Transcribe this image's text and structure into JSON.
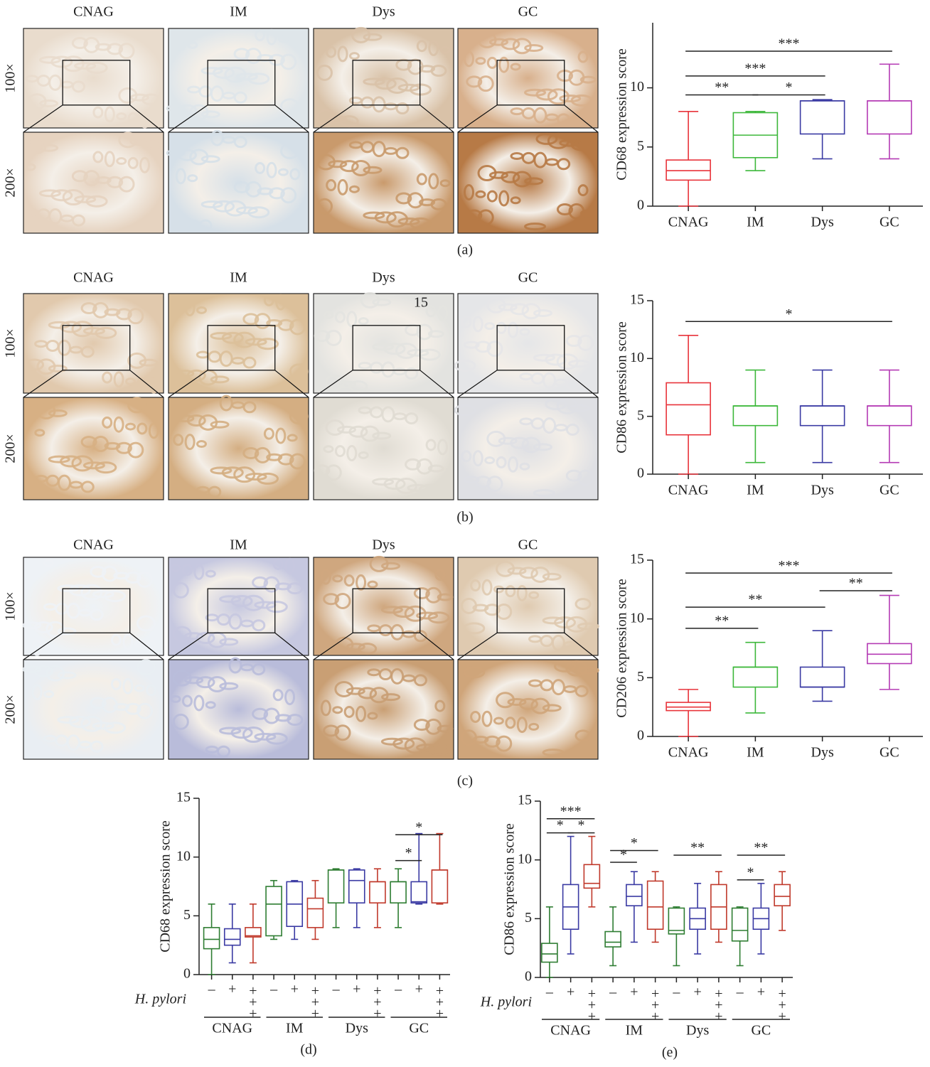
{
  "image_panels": [
    {
      "label": "(a)",
      "columns": [
        "CNAG",
        "IM",
        "Dys",
        "GC"
      ],
      "rows": [
        "100×",
        "200×"
      ]
    },
    {
      "label": "(b)",
      "columns": [
        "CNAG",
        "IM",
        "Dys",
        "GC"
      ],
      "rows": [
        "100×",
        "200×"
      ],
      "note": "15"
    },
    {
      "label": "(c)",
      "columns": [
        "CNAG",
        "IM",
        "Dys",
        "GC"
      ],
      "rows": [
        "100×",
        "200×"
      ]
    }
  ],
  "chart_data": [
    {
      "type": "box",
      "ylabel": "CD68 expression score",
      "categories": [
        "CNAG",
        "IM",
        "Dys",
        "GC"
      ],
      "ylim": [
        0,
        15.5
      ],
      "yticks": [
        0,
        5,
        10
      ],
      "boxes": [
        {
          "color": "#e8333a",
          "min": 0,
          "q1": 2.2,
          "median": 3,
          "q3": 3.9,
          "max": 8
        },
        {
          "color": "#3db83b",
          "min": 3,
          "q1": 4.1,
          "median": 6,
          "q3": 7.9,
          "max": 8
        },
        {
          "color": "#3a3aa3",
          "min": 4,
          "q1": 6.1,
          "median": 8.9,
          "q3": 8.9,
          "max": 9
        },
        {
          "color": "#b43ab4",
          "min": 4,
          "q1": 6.1,
          "median": 8.9,
          "q3": 8.9,
          "max": 12
        }
      ],
      "annotations": [
        {
          "from": 0,
          "to": 3,
          "y": 13.1,
          "label": "***"
        },
        {
          "from": 0,
          "to": 2,
          "y": 11.0,
          "label": "***"
        },
        {
          "from": 0,
          "to": 1,
          "y": 9.4,
          "label": "**"
        },
        {
          "from": 1,
          "to": 2,
          "y": 9.4,
          "label": "*"
        }
      ]
    },
    {
      "type": "box",
      "ylabel": "CD86 expression score",
      "categories": [
        "CNAG",
        "IM",
        "Dys",
        "GC"
      ],
      "ylim": [
        0,
        15
      ],
      "yticks": [
        0,
        5,
        10,
        15
      ],
      "boxes": [
        {
          "color": "#e8333a",
          "min": 0,
          "q1": 3.4,
          "median": 6,
          "q3": 7.9,
          "max": 12
        },
        {
          "color": "#3db83b",
          "min": 1,
          "q1": 4.2,
          "median": 5.9,
          "q3": 5.9,
          "max": 9
        },
        {
          "color": "#3a3aa3",
          "min": 1,
          "q1": 4.2,
          "median": 5.9,
          "q3": 5.9,
          "max": 9
        },
        {
          "color": "#b43ab4",
          "min": 1,
          "q1": 4.2,
          "median": 5.9,
          "q3": 5.9,
          "max": 9
        }
      ],
      "annotations": [
        {
          "from": 0,
          "to": 3,
          "y": 13.2,
          "label": "*"
        }
      ]
    },
    {
      "type": "box",
      "ylabel": "CD206 expression score",
      "categories": [
        "CNAG",
        "IM",
        "Dys",
        "GC"
      ],
      "ylim": [
        0,
        15
      ],
      "yticks": [
        0,
        5,
        10,
        15
      ],
      "boxes": [
        {
          "color": "#e8333a",
          "min": 0,
          "q1": 2.2,
          "median": 2.5,
          "q3": 2.9,
          "max": 4
        },
        {
          "color": "#3db83b",
          "min": 2,
          "q1": 4.2,
          "median": 5.9,
          "q3": 5.9,
          "max": 8
        },
        {
          "color": "#3a3aa3",
          "min": 3,
          "q1": 4.2,
          "median": 4.2,
          "q3": 5.9,
          "max": 9
        },
        {
          "color": "#b43ab4",
          "min": 4,
          "q1": 6.2,
          "median": 7,
          "q3": 7.9,
          "max": 12
        }
      ],
      "annotations": [
        {
          "from": 0,
          "to": 3,
          "y": 13.9,
          "label": "***"
        },
        {
          "from": 2,
          "to": 3,
          "y": 12.4,
          "label": "**"
        },
        {
          "from": 0,
          "to": 2,
          "y": 11.0,
          "label": "**"
        },
        {
          "from": 0,
          "to": 1,
          "y": 9.2,
          "label": "**"
        }
      ]
    },
    {
      "type": "grouped_box",
      "label": "(d)",
      "ylabel": "CD68 expression score",
      "groups": [
        "CNAG",
        "IM",
        "Dys",
        "GC"
      ],
      "factor": "H. pylori",
      "levels": [
        "–",
        "+",
        "+++"
      ],
      "level_colors": [
        "#2e7d32",
        "#3a3aa3",
        "#c0392b"
      ],
      "ylim": [
        0,
        15
      ],
      "yticks": [
        0,
        5,
        10,
        15
      ],
      "boxes": [
        {
          "min": 0,
          "q1": 2.2,
          "median": 3,
          "q3": 4,
          "max": 6
        },
        {
          "min": 1,
          "q1": 2.5,
          "median": 3,
          "q3": 3.9,
          "max": 6
        },
        {
          "min": 1,
          "q1": 3.2,
          "median": 3.3,
          "q3": 4,
          "max": 6
        },
        {
          "min": 3,
          "q1": 3.3,
          "median": 6,
          "q3": 7.5,
          "max": 8
        },
        {
          "min": 3,
          "q1": 4.1,
          "median": 6,
          "q3": 7.9,
          "max": 8
        },
        {
          "min": 3,
          "q1": 4,
          "median": 5.6,
          "q3": 6.5,
          "max": 8
        },
        {
          "min": 4,
          "q1": 6.1,
          "median": 8.9,
          "q3": 8.9,
          "max": 9
        },
        {
          "min": 4,
          "q1": 6.1,
          "median": 8,
          "q3": 8.9,
          "max": 9
        },
        {
          "min": 4,
          "q1": 6.1,
          "median": 7.9,
          "q3": 7.9,
          "max": 9
        },
        {
          "min": 4,
          "q1": 6.1,
          "median": 7.9,
          "q3": 7.9,
          "max": 9
        },
        {
          "min": 6,
          "q1": 6.1,
          "median": 6.2,
          "q3": 7.9,
          "max": 12
        },
        {
          "min": 6,
          "q1": 6.1,
          "median": 8.9,
          "q3": 8.9,
          "max": 12
        }
      ],
      "annotations": [
        {
          "from": 9,
          "to": 10,
          "y": 9.7,
          "label": "*"
        },
        {
          "from": 9,
          "to": 11,
          "y": 11.9,
          "label": "*"
        }
      ]
    },
    {
      "type": "grouped_box",
      "label": "(e)",
      "ylabel": "CD86 expression score",
      "groups": [
        "CNAG",
        "IM",
        "Dys",
        "GC"
      ],
      "factor": "H. pylori",
      "levels": [
        "–",
        "+",
        "+++"
      ],
      "level_colors": [
        "#2e7d32",
        "#3a3aa3",
        "#c0392b"
      ],
      "ylim": [
        0,
        15
      ],
      "yticks": [
        0,
        5,
        10,
        15
      ],
      "boxes": [
        {
          "min": 0,
          "q1": 1.3,
          "median": 2,
          "q3": 2.9,
          "max": 6
        },
        {
          "min": 2,
          "q1": 4.1,
          "median": 6,
          "q3": 7.9,
          "max": 12
        },
        {
          "min": 6,
          "q1": 7.6,
          "median": 8,
          "q3": 9.6,
          "max": 12
        },
        {
          "min": 1,
          "q1": 2.6,
          "median": 3,
          "q3": 3.9,
          "max": 6
        },
        {
          "min": 3,
          "q1": 6.1,
          "median": 6.9,
          "q3": 7.9,
          "max": 9
        },
        {
          "min": 3,
          "q1": 4.1,
          "median": 6,
          "q3": 8.2,
          "max": 9
        },
        {
          "min": 1,
          "q1": 3.7,
          "median": 4,
          "q3": 5.9,
          "max": 6
        },
        {
          "min": 2,
          "q1": 4.1,
          "median": 5,
          "q3": 5.9,
          "max": 8
        },
        {
          "min": 3,
          "q1": 4.1,
          "median": 6,
          "q3": 7.9,
          "max": 9
        },
        {
          "min": 1,
          "q1": 3.1,
          "median": 4,
          "q3": 5.9,
          "max": 6
        },
        {
          "min": 2,
          "q1": 4.1,
          "median": 5,
          "q3": 5.9,
          "max": 8
        },
        {
          "min": 4,
          "q1": 6.1,
          "median": 6.9,
          "q3": 7.9,
          "max": 9
        }
      ],
      "annotations": [
        {
          "from": 0,
          "to": 1,
          "y": 12.3,
          "label": "*"
        },
        {
          "from": 0,
          "to": 2,
          "y": 13.5,
          "label": "***"
        },
        {
          "from": 1,
          "to": 2,
          "y": 12.3,
          "label": "*"
        },
        {
          "from": 3,
          "to": 4,
          "y": 9.8,
          "label": "*"
        },
        {
          "from": 3,
          "to": 5,
          "y": 10.8,
          "label": "*"
        },
        {
          "from": 6,
          "to": 8,
          "y": 10.4,
          "label": "**"
        },
        {
          "from": 9,
          "to": 10,
          "y": 8.3,
          "label": "*"
        },
        {
          "from": 9,
          "to": 11,
          "y": 10.4,
          "label": "**"
        }
      ]
    }
  ]
}
